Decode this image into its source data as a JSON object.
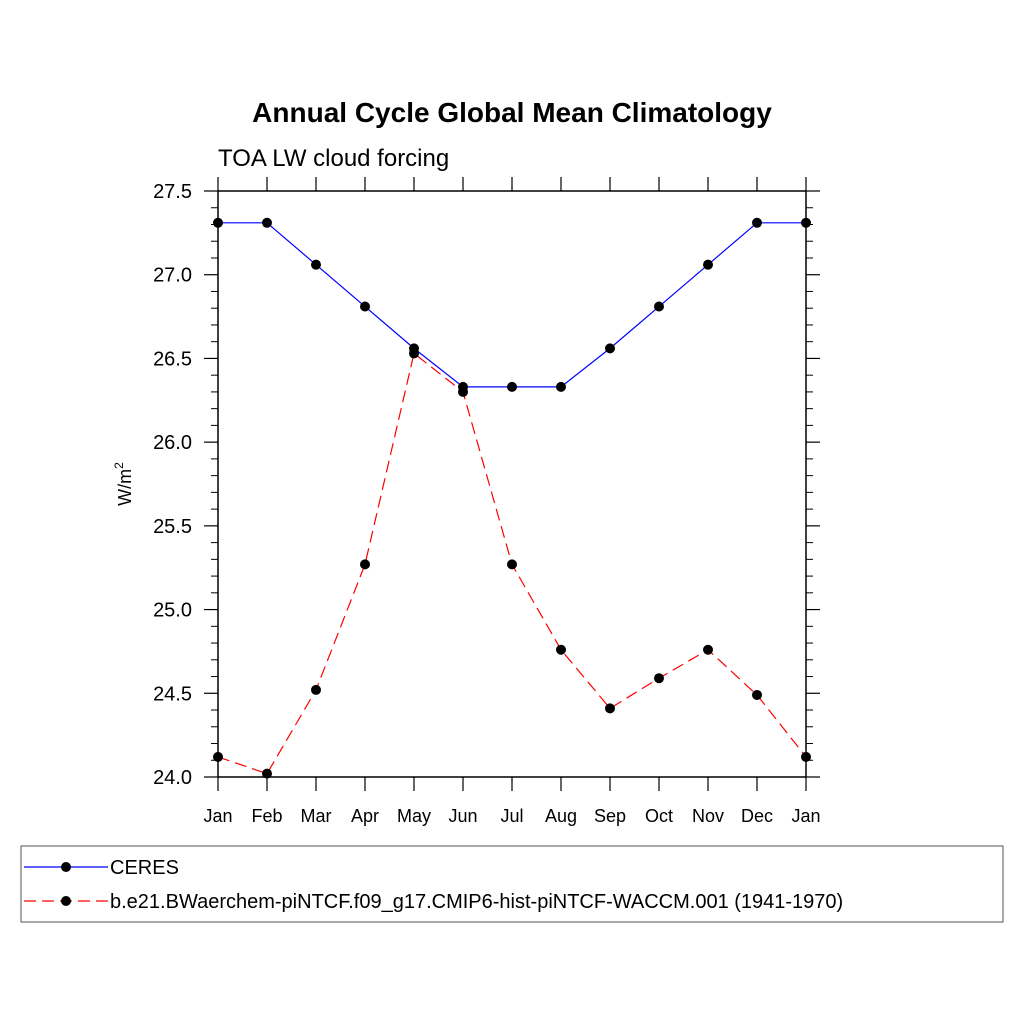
{
  "chart_data": {
    "type": "line",
    "title": "Annual Cycle Global Mean Climatology",
    "subtitle": "TOA LW cloud forcing",
    "xlabel": "",
    "ylabel": "W/m",
    "ylabel_superscript": "2",
    "categories": [
      "Jan",
      "Feb",
      "Mar",
      "Apr",
      "May",
      "Jun",
      "Jul",
      "Aug",
      "Sep",
      "Oct",
      "Nov",
      "Dec",
      "Jan"
    ],
    "yticks": [
      "24.0",
      "24.5",
      "25.0",
      "25.5",
      "26.0",
      "26.5",
      "27.0",
      "27.5"
    ],
    "ylim": [
      24.0,
      27.5
    ],
    "grid": false,
    "legend_position": "bottom",
    "series": [
      {
        "name": "CERES",
        "color": "#0000ff",
        "dash": "solid",
        "marker": "filled-circle",
        "values": [
          27.31,
          27.31,
          27.06,
          26.81,
          26.56,
          26.33,
          26.33,
          26.33,
          26.56,
          26.81,
          27.06,
          27.31,
          27.31
        ]
      },
      {
        "name": "b.e21.BWaerchem-piNTCF.f09_g17.CMIP6-hist-piNTCF-WACCM.001 (1941-1970)",
        "color": "#ff0000",
        "dash": "dashed",
        "marker": "filled-circle",
        "values": [
          24.12,
          24.02,
          24.52,
          25.27,
          26.53,
          26.3,
          25.27,
          24.76,
          24.41,
          24.59,
          24.76,
          24.49,
          24.12
        ]
      }
    ]
  }
}
